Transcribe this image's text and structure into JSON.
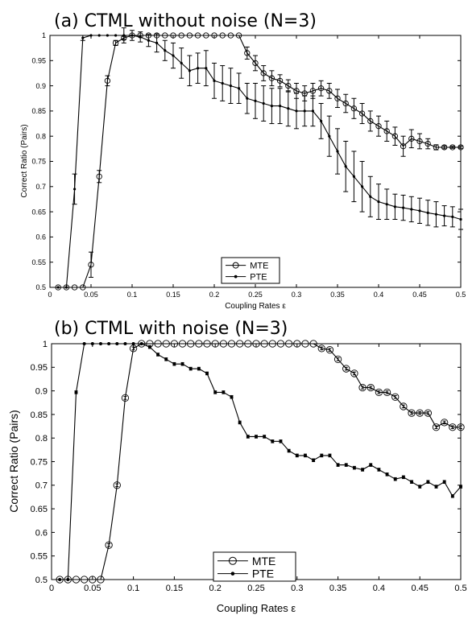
{
  "chart_data": [
    {
      "type": "line",
      "title": "(a) CTML without noise (N=3)",
      "xlabel": "Coupling Rates ε",
      "ylabel": "Correct Ratio (Pairs)",
      "xlim": [
        0,
        0.5
      ],
      "ylim": [
        0.5,
        1
      ],
      "xticks": [
        "0",
        "0.05",
        "0.1",
        "0.15",
        "0.2",
        "0.25",
        "0.3",
        "0.35",
        "0.4",
        "0.45",
        "0.5"
      ],
      "yticks": [
        "0.5",
        "0.55",
        "0.6",
        "0.65",
        "0.7",
        "0.75",
        "0.8",
        "0.85",
        "0.9",
        "0.95",
        "1"
      ],
      "grid": false,
      "legend": "bottom-center",
      "series": [
        {
          "name": "MTE",
          "marker": "circle",
          "x": [
            0.01,
            0.02,
            0.03,
            0.04,
            0.05,
            0.06,
            0.07,
            0.08,
            0.09,
            0.1,
            0.11,
            0.12,
            0.13,
            0.14,
            0.15,
            0.16,
            0.17,
            0.18,
            0.19,
            0.2,
            0.21,
            0.22,
            0.23,
            0.24,
            0.25,
            0.26,
            0.27,
            0.28,
            0.29,
            0.3,
            0.31,
            0.32,
            0.33,
            0.34,
            0.35,
            0.36,
            0.37,
            0.38,
            0.39,
            0.4,
            0.41,
            0.42,
            0.43,
            0.44,
            0.45,
            0.46,
            0.47,
            0.48,
            0.49,
            0.5
          ],
          "y": [
            0.5,
            0.5,
            0.5,
            0.5,
            0.545,
            0.72,
            0.91,
            0.985,
            0.995,
            1,
            1,
            1,
            1,
            1,
            1,
            1,
            1,
            1,
            1,
            1,
            1,
            1,
            1,
            0.965,
            0.945,
            0.925,
            0.915,
            0.91,
            0.9,
            0.89,
            0.885,
            0.89,
            0.895,
            0.89,
            0.875,
            0.865,
            0.855,
            0.845,
            0.83,
            0.82,
            0.81,
            0.8,
            0.78,
            0.795,
            0.79,
            0.785,
            0.778,
            0.778,
            0.778,
            0.778
          ],
          "err": [
            0,
            0,
            0,
            0,
            0.025,
            0.012,
            0.01,
            0.005,
            0.003,
            0,
            0,
            0,
            0,
            0,
            0,
            0,
            0,
            0,
            0,
            0,
            0,
            0,
            0,
            0.012,
            0.015,
            0.015,
            0.015,
            0.012,
            0.012,
            0.015,
            0.015,
            0.015,
            0.015,
            0.015,
            0.018,
            0.018,
            0.02,
            0.02,
            0.02,
            0.02,
            0.02,
            0.018,
            0.02,
            0.018,
            0.015,
            0.01,
            0.005,
            0.003,
            0.002,
            0.002
          ]
        },
        {
          "name": "PTE",
          "marker": "dot",
          "x": [
            0.01,
            0.02,
            0.03,
            0.04,
            0.05,
            0.06,
            0.07,
            0.08,
            0.09,
            0.1,
            0.11,
            0.12,
            0.13,
            0.14,
            0.15,
            0.16,
            0.17,
            0.18,
            0.19,
            0.2,
            0.21,
            0.22,
            0.23,
            0.24,
            0.25,
            0.26,
            0.27,
            0.28,
            0.29,
            0.3,
            0.31,
            0.32,
            0.33,
            0.34,
            0.35,
            0.36,
            0.37,
            0.38,
            0.39,
            0.4,
            0.41,
            0.42,
            0.43,
            0.44,
            0.45,
            0.46,
            0.47,
            0.48,
            0.49,
            0.5
          ],
          "y": [
            0.5,
            0.5,
            0.695,
            0.995,
            1,
            1,
            1,
            1,
            1,
            1,
            0.997,
            0.99,
            0.985,
            0.97,
            0.96,
            0.945,
            0.93,
            0.935,
            0.935,
            0.91,
            0.905,
            0.9,
            0.895,
            0.875,
            0.87,
            0.865,
            0.86,
            0.86,
            0.855,
            0.85,
            0.85,
            0.85,
            0.83,
            0.8,
            0.77,
            0.74,
            0.72,
            0.7,
            0.68,
            0.67,
            0.665,
            0.66,
            0.658,
            0.655,
            0.652,
            0.648,
            0.645,
            0.642,
            0.64,
            0.635
          ],
          "err": [
            0,
            0,
            0.03,
            0.005,
            0,
            0,
            0,
            0,
            0.015,
            0.01,
            0.01,
            0.012,
            0.018,
            0.02,
            0.025,
            0.03,
            0.03,
            0.03,
            0.035,
            0.035,
            0.035,
            0.035,
            0.03,
            0.03,
            0.035,
            0.035,
            0.035,
            0.035,
            0.035,
            0.035,
            0.03,
            0.03,
            0.035,
            0.04,
            0.045,
            0.05,
            0.05,
            0.05,
            0.04,
            0.035,
            0.03,
            0.025,
            0.025,
            0.025,
            0.025,
            0.025,
            0.025,
            0.02,
            0.02,
            0.02
          ]
        }
      ]
    },
    {
      "type": "line",
      "title": "(b) CTML with noise (N=3)",
      "xlabel": "Coupling Rates ε",
      "ylabel": "Correct Ratio (Pairs)",
      "xlim": [
        0,
        0.5
      ],
      "ylim": [
        0.5,
        1
      ],
      "xticks": [
        "0",
        "0.05",
        "0.1",
        "0.15",
        "0.2",
        "0.25",
        "0.3",
        "0.35",
        "0.4",
        "0.45",
        "0.5"
      ],
      "yticks": [
        "0.5",
        "0.55",
        "0.6",
        "0.65",
        "0.7",
        "0.75",
        "0.8",
        "0.85",
        "0.9",
        "0.95",
        "1"
      ],
      "grid": false,
      "legend": "bottom-center",
      "series": [
        {
          "name": "MTE",
          "marker": "circle",
          "x": [
            0.01,
            0.02,
            0.03,
            0.04,
            0.05,
            0.06,
            0.07,
            0.08,
            0.09,
            0.1,
            0.11,
            0.12,
            0.13,
            0.14,
            0.15,
            0.16,
            0.17,
            0.18,
            0.19,
            0.2,
            0.21,
            0.22,
            0.23,
            0.24,
            0.25,
            0.26,
            0.27,
            0.28,
            0.29,
            0.3,
            0.31,
            0.32,
            0.33,
            0.34,
            0.35,
            0.36,
            0.37,
            0.38,
            0.39,
            0.4,
            0.41,
            0.42,
            0.43,
            0.44,
            0.45,
            0.46,
            0.47,
            0.48,
            0.49,
            0.5
          ],
          "y": [
            0.5,
            0.5,
            0.5,
            0.5,
            0.5,
            0.5,
            0.573,
            0.7,
            0.885,
            0.99,
            1,
            1,
            1,
            1,
            1,
            1,
            1,
            1,
            1,
            1,
            1,
            1,
            1,
            1,
            1,
            1,
            1,
            1,
            1,
            1,
            1,
            1,
            0.99,
            0.987,
            0.967,
            0.947,
            0.937,
            0.907,
            0.907,
            0.897,
            0.897,
            0.887,
            0.867,
            0.853,
            0.853,
            0.853,
            0.823,
            0.833,
            0.823,
            0.823
          ],
          "err": [
            0,
            0,
            0,
            0,
            0,
            0,
            0.003,
            0.003,
            0.003,
            0.003,
            0,
            0,
            0,
            0,
            0,
            0,
            0,
            0,
            0,
            0,
            0,
            0,
            0,
            0,
            0,
            0,
            0,
            0,
            0,
            0,
            0,
            0,
            0.003,
            0.003,
            0.003,
            0.003,
            0.003,
            0.003,
            0.003,
            0.003,
            0.003,
            0.003,
            0.003,
            0.003,
            0.003,
            0.003,
            0.003,
            0.003,
            0.003,
            0.003
          ]
        },
        {
          "name": "PTE",
          "marker": "dot",
          "x": [
            0.01,
            0.02,
            0.03,
            0.04,
            0.05,
            0.06,
            0.07,
            0.08,
            0.09,
            0.1,
            0.11,
            0.12,
            0.13,
            0.14,
            0.15,
            0.16,
            0.17,
            0.18,
            0.19,
            0.2,
            0.21,
            0.22,
            0.23,
            0.24,
            0.25,
            0.26,
            0.27,
            0.28,
            0.29,
            0.3,
            0.31,
            0.32,
            0.33,
            0.34,
            0.35,
            0.36,
            0.37,
            0.38,
            0.39,
            0.4,
            0.41,
            0.42,
            0.43,
            0.44,
            0.45,
            0.46,
            0.47,
            0.48,
            0.49,
            0.5
          ],
          "y": [
            0.5,
            0.5,
            0.897,
            1,
            1,
            1,
            1,
            1,
            1,
            1,
            1,
            0.993,
            0.977,
            0.967,
            0.957,
            0.957,
            0.947,
            0.947,
            0.937,
            0.897,
            0.897,
            0.887,
            0.833,
            0.803,
            0.803,
            0.803,
            0.793,
            0.793,
            0.773,
            0.763,
            0.763,
            0.753,
            0.763,
            0.763,
            0.743,
            0.743,
            0.737,
            0.733,
            0.743,
            0.733,
            0.723,
            0.713,
            0.717,
            0.707,
            0.697,
            0.707,
            0.697,
            0.707,
            0.677,
            0.697
          ],
          "err": [
            0,
            0,
            0.003,
            0,
            0,
            0,
            0,
            0,
            0,
            0,
            0,
            0.003,
            0.003,
            0.003,
            0.003,
            0.003,
            0.003,
            0.003,
            0.003,
            0.003,
            0.003,
            0.003,
            0.003,
            0.003,
            0.003,
            0.003,
            0.003,
            0.003,
            0.003,
            0.003,
            0.003,
            0.003,
            0.003,
            0.003,
            0.003,
            0.003,
            0.003,
            0.003,
            0.003,
            0.003,
            0.003,
            0.003,
            0.003,
            0.003,
            0.003,
            0.003,
            0.003,
            0.003,
            0.003,
            0.003
          ]
        }
      ]
    }
  ]
}
